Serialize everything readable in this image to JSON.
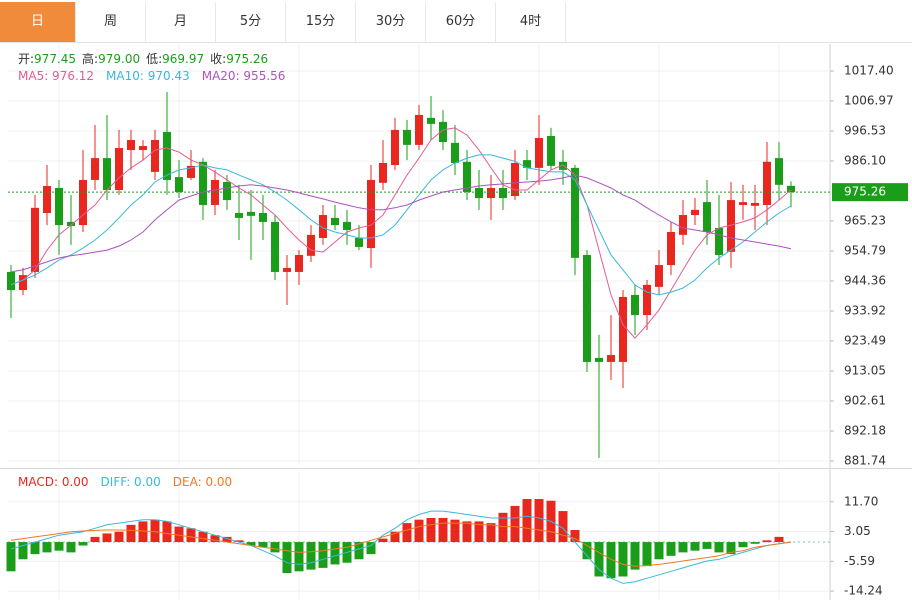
{
  "tabs": [
    "日",
    "周",
    "月",
    "5分",
    "15分",
    "30分",
    "60分",
    "4时"
  ],
  "active_tab": 0,
  "chart_data": [
    {
      "type": "candlestick",
      "info": [
        {
          "label": "开:",
          "value": "977.45"
        },
        {
          "label": "高:",
          "value": "979.00"
        },
        {
          "label": "低:",
          "value": "969.97"
        },
        {
          "label": "收:",
          "value": "975.26"
        }
      ],
      "info_color": "#1a9e1a",
      "up_color": "#e8281f",
      "down_color": "#1a9e1a",
      "open": [
        947.5,
        941.2,
        947.5,
        968.0,
        976.7,
        964.9,
        963.8,
        979.5,
        987.1,
        976.0,
        989.9,
        989.9,
        982.3,
        996.2,
        980.5,
        980.2,
        985.8,
        970.8,
        978.8,
        968.0,
        968.4,
        968.0,
        964.9,
        947.5,
        947.5,
        953.1,
        959.3,
        966.3,
        964.9,
        959.3,
        955.8,
        978.5,
        984.7,
        996.9,
        991.7,
        1001.1,
        999.7,
        992.4,
        985.8,
        976.7,
        973.2,
        976.7,
        973.9,
        986.4,
        983.7,
        994.8,
        985.8,
        983.7,
        953.4,
        917.6,
        916.2,
        916.2,
        939.5,
        932.5,
        942.3,
        949.9,
        960.4,
        967.3,
        971.8,
        962.8,
        954.5,
        970.8,
        970.5,
        970.8,
        987.1,
        977.45
      ],
      "high": [
        949.9,
        948.9,
        974.3,
        984.7,
        979.5,
        974.3,
        989.9,
        998.6,
        1002.1,
        996.9,
        996.9,
        993.4,
        996.9,
        1010.1,
        986.4,
        989.9,
        987.1,
        983.0,
        981.2,
        977.8,
        976.0,
        974.3,
        967.3,
        953.4,
        955.1,
        963.8,
        970.8,
        970.8,
        969.1,
        963.8,
        984.7,
        993.4,
        1001.1,
        1000.4,
        1005.6,
        1008.7,
        1003.8,
        998.6,
        989.9,
        983.0,
        981.2,
        983.0,
        989.9,
        989.9,
        1002.1,
        997.6,
        989.9,
        984.7,
        955.1,
        925.6,
        932.5,
        941.2,
        943.0,
        944.7,
        955.1,
        964.9,
        972.5,
        973.2,
        979.5,
        974.3,
        978.8,
        977.8,
        977.8,
        992.7,
        992.7,
        979.0
      ],
      "low": [
        931.5,
        939.5,
        945.4,
        963.8,
        953.4,
        956.9,
        961.4,
        976.0,
        972.5,
        974.3,
        983.0,
        986.4,
        979.5,
        974.3,
        973.2,
        979.5,
        965.6,
        967.3,
        969.1,
        958.6,
        951.7,
        958.6,
        944.7,
        936.0,
        943.0,
        951.0,
        956.9,
        962.1,
        956.9,
        955.1,
        948.9,
        976.0,
        983.0,
        986.4,
        989.9,
        993.4,
        989.9,
        981.2,
        972.5,
        969.1,
        965.6,
        969.1,
        972.5,
        979.5,
        977.8,
        983.0,
        977.8,
        946.4,
        912.7,
        882.8,
        909.9,
        907.1,
        925.6,
        927.3,
        939.5,
        946.4,
        956.9,
        963.8,
        956.9,
        949.9,
        948.9,
        965.6,
        962.1,
        963.8,
        972.5,
        969.97
      ],
      "close": [
        941.2,
        946.4,
        969.8,
        977.4,
        963.8,
        963.5,
        979.5,
        987.1,
        976.0,
        990.6,
        993.4,
        991.3,
        993.4,
        979.5,
        975.3,
        984.4,
        970.8,
        979.5,
        972.5,
        966.3,
        967.0,
        964.9,
        947.5,
        948.9,
        953.4,
        960.4,
        967.3,
        963.8,
        962.1,
        956.2,
        979.5,
        985.4,
        996.9,
        991.7,
        1002.1,
        999.0,
        992.7,
        985.4,
        975.3,
        973.2,
        976.7,
        973.2,
        985.4,
        983.7,
        994.1,
        984.4,
        983.0,
        952.4,
        916.2,
        916.2,
        918.6,
        938.8,
        932.5,
        943.0,
        949.9,
        961.4,
        967.3,
        969.1,
        961.4,
        953.4,
        972.5,
        971.8,
        971.5,
        985.8,
        977.8,
        975.26
      ],
      "series": [
        {
          "name": "MA5: 976.12",
          "color": "#e35d97",
          "values": [
            943.0,
            944.7,
            948.2,
            955.1,
            960.4,
            963.8,
            967.3,
            970.8,
            976.0,
            980.2,
            983.7,
            986.4,
            989.9,
            990.6,
            989.2,
            986.4,
            984.7,
            982.3,
            979.5,
            976.7,
            974.3,
            970.8,
            967.3,
            962.8,
            958.6,
            955.1,
            954.4,
            957.9,
            961.4,
            962.8,
            963.8,
            967.3,
            974.3,
            981.2,
            987.1,
            993.4,
            996.9,
            997.6,
            995.1,
            989.9,
            983.7,
            977.8,
            976.0,
            976.0,
            979.5,
            983.0,
            984.7,
            981.2,
            970.8,
            955.1,
            939.5,
            929.1,
            924.5,
            929.1,
            934.3,
            941.2,
            948.2,
            955.1,
            960.4,
            962.8,
            963.8,
            964.9,
            966.3,
            969.1,
            972.5,
            976.12
          ]
        },
        {
          "name": "MA10: 970.43",
          "color": "#3ab8dc",
          "values": [
            943.0,
            944.7,
            946.4,
            948.9,
            951.7,
            953.4,
            955.8,
            958.6,
            962.1,
            966.3,
            970.8,
            974.3,
            978.8,
            981.2,
            983.0,
            983.7,
            984.7,
            983.7,
            983.0,
            981.2,
            979.5,
            977.8,
            975.3,
            972.5,
            969.1,
            965.6,
            962.8,
            961.4,
            960.4,
            959.3,
            959.3,
            960.4,
            963.8,
            969.1,
            974.3,
            979.5,
            983.0,
            985.4,
            987.1,
            988.2,
            988.2,
            987.1,
            986.0,
            983.7,
            983.0,
            982.3,
            982.3,
            979.5,
            970.8,
            962.1,
            953.4,
            948.2,
            943.0,
            940.5,
            939.5,
            940.5,
            941.9,
            944.7,
            948.9,
            952.4,
            955.1,
            957.9,
            961.4,
            964.9,
            968.0,
            970.43
          ]
        },
        {
          "name": "MA20: 955.56",
          "color": "#ad52bf",
          "values": [
            947.5,
            948.2,
            949.6,
            951.0,
            952.4,
            953.1,
            953.7,
            954.4,
            955.1,
            956.5,
            958.6,
            961.4,
            965.6,
            969.1,
            972.5,
            973.9,
            975.3,
            976.0,
            976.7,
            977.4,
            977.8,
            977.4,
            976.7,
            976.0,
            975.0,
            973.9,
            972.9,
            971.8,
            970.8,
            969.8,
            969.1,
            969.1,
            969.8,
            970.8,
            972.5,
            973.9,
            975.3,
            976.0,
            976.7,
            977.4,
            977.8,
            978.1,
            978.5,
            978.8,
            979.1,
            979.5,
            980.2,
            981.2,
            980.2,
            978.5,
            976.7,
            974.3,
            972.5,
            969.8,
            967.3,
            964.9,
            962.8,
            962.1,
            961.4,
            960.4,
            959.3,
            958.6,
            957.9,
            957.2,
            956.5,
            955.56
          ]
        }
      ],
      "last_price": 975.26,
      "last_price_color": "#1a9e1a",
      "ylim": [
        880.35,
        1026.44
      ],
      "yticks": [
        {
          "value": 1017.4,
          "label": "1017.40"
        },
        1006.97,
        996.53,
        {
          "value": 986.1,
          "label": "986.10"
        },
        965.23,
        954.79,
        944.36,
        933.92,
        923.49,
        913.05,
        902.61,
        892.18,
        881.74
      ],
      "grid": true
    },
    {
      "type": "macd",
      "up_color": "#e8281f",
      "down_color": "#1a9e1a",
      "series": [
        {
          "name": "MACD: 0.00",
          "kind": "bar",
          "color": "#e8281f",
          "values": [
            -8.5,
            -5,
            -3.5,
            -3,
            -2.5,
            -3,
            -1,
            1.5,
            2.5,
            3,
            5,
            6,
            6.5,
            6,
            4.5,
            4,
            3,
            2,
            1.5,
            0.5,
            -1,
            -1.5,
            -3,
            -9,
            -8.5,
            -8,
            -7.5,
            -6.5,
            -6,
            -5,
            -3.5,
            1,
            3,
            5.5,
            6.5,
            7,
            7,
            6.5,
            6,
            6,
            5.5,
            8.5,
            10.5,
            12.5,
            12.5,
            12,
            9,
            3.5,
            -5,
            -10,
            -10.5,
            -10,
            -8,
            -7,
            -5,
            -4,
            -3,
            -2.5,
            -2,
            -3,
            -3.5,
            -1.5,
            -0.5,
            0.5,
            1.5,
            0
          ]
        },
        {
          "name": "DIFF: 0.00",
          "kind": "line",
          "color": "#3ab8dc",
          "values": [
            -2,
            -1,
            0,
            1,
            2,
            2.5,
            3,
            4,
            5,
            5.5,
            6,
            6.5,
            6.5,
            6,
            5,
            4,
            3,
            2,
            1,
            0,
            -1,
            -2.5,
            -4,
            -6,
            -6.5,
            -6,
            -5,
            -4,
            -3,
            -2,
            -1,
            2,
            4,
            6.5,
            8,
            9,
            9,
            8.5,
            8,
            7.5,
            7,
            7,
            7,
            7.5,
            7,
            6,
            4,
            0,
            -4,
            -8,
            -10.5,
            -12,
            -11.5,
            -10.5,
            -9.5,
            -8.5,
            -7.5,
            -6.5,
            -5.5,
            -5,
            -4,
            -3,
            -2,
            -1,
            -0.5,
            0
          ]
        },
        {
          "name": "DEA: 0.00",
          "kind": "line",
          "color": "#f07a21",
          "values": [
            0.5,
            1,
            1.5,
            2,
            2.5,
            3,
            3.2,
            3.4,
            3.5,
            3.5,
            3.4,
            3.2,
            3,
            2.5,
            2,
            1.5,
            1,
            0.5,
            0,
            -0.5,
            -1,
            -1.5,
            -2,
            -2.5,
            -3,
            -2.8,
            -2.5,
            -2,
            -1.5,
            -0.5,
            0.5,
            1.5,
            2.5,
            3.5,
            4.5,
            5,
            5.5,
            5.5,
            5.5,
            5,
            5,
            4.5,
            4.5,
            4,
            3.5,
            3,
            2,
            1,
            -1,
            -3,
            -5,
            -6.5,
            -7,
            -6.8,
            -6.5,
            -6,
            -5.5,
            -5,
            -4.5,
            -4,
            -3,
            -2.5,
            -1.5,
            -1,
            -0.5,
            0
          ]
        }
      ],
      "ylim": [
        -16.83,
        20.35
      ],
      "yticks": [
        {
          "value": 11.7,
          "label": "11.70"
        },
        3.05,
        -5.59,
        -14.24
      ],
      "grid": true
    }
  ]
}
